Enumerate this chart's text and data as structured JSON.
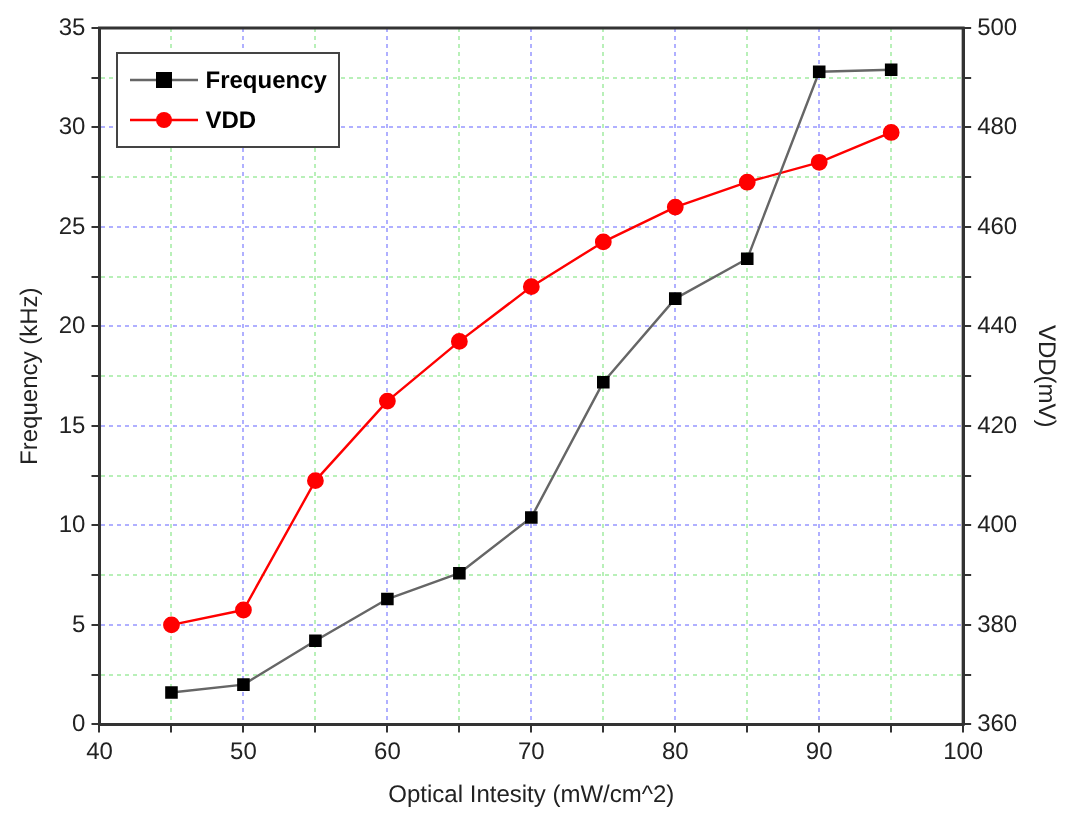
{
  "chart_data": {
    "type": "line",
    "xlabel": "Optical Intesity (mW/cm^2)",
    "ylabel": "Frequency (kHz)",
    "y2label": "VDD(mV)",
    "x": [
      45,
      50,
      55,
      60,
      65,
      70,
      75,
      80,
      85,
      90,
      95
    ],
    "series": [
      {
        "name": "Frequency",
        "color": "#000000",
        "marker": "square",
        "values": [
          1.6,
          2.0,
          4.2,
          6.3,
          7.6,
          10.4,
          17.2,
          21.4,
          23.4,
          32.8,
          32.9
        ]
      },
      {
        "name": "VDD",
        "color": "#ff0000",
        "marker": "circle",
        "axis": "y2",
        "values": [
          380,
          383,
          409,
          425,
          437,
          448,
          457,
          464,
          469,
          473,
          479
        ]
      }
    ],
    "xlim": [
      40,
      100
    ],
    "xticks": [
      40,
      {
        "value": 45,
        "label": null
      },
      50,
      {
        "value": 55,
        "label": null
      },
      60,
      {
        "value": 65,
        "label": null
      },
      70,
      {
        "value": 75,
        "label": null
      },
      80,
      {
        "value": 85,
        "label": null
      },
      90,
      {
        "value": 95,
        "label": null
      },
      100
    ],
    "ylim": [
      0,
      35
    ],
    "yticks": [
      0,
      {
        "value": 2.5,
        "label": null
      },
      5,
      {
        "value": 7.5,
        "label": null
      },
      10,
      {
        "value": 12.5,
        "label": null
      },
      15,
      {
        "value": 17.5,
        "label": null
      },
      20,
      {
        "value": 22.5,
        "label": null
      },
      25,
      {
        "value": 27.5,
        "label": null
      },
      30,
      {
        "value": 32.5,
        "label": null
      },
      35
    ],
    "y2lim": [
      360,
      500
    ],
    "y2ticks": [
      360,
      {
        "value": 370,
        "label": null
      },
      380,
      {
        "value": 390,
        "label": null
      },
      400,
      {
        "value": 410,
        "label": null
      },
      420,
      {
        "value": 430,
        "label": null
      },
      440,
      {
        "value": 450,
        "label": null
      },
      460,
      {
        "value": 470,
        "label": null
      },
      480,
      {
        "value": 490,
        "label": null
      },
      500
    ],
    "grid": true,
    "legend": "top left",
    "line_style": "solid"
  }
}
